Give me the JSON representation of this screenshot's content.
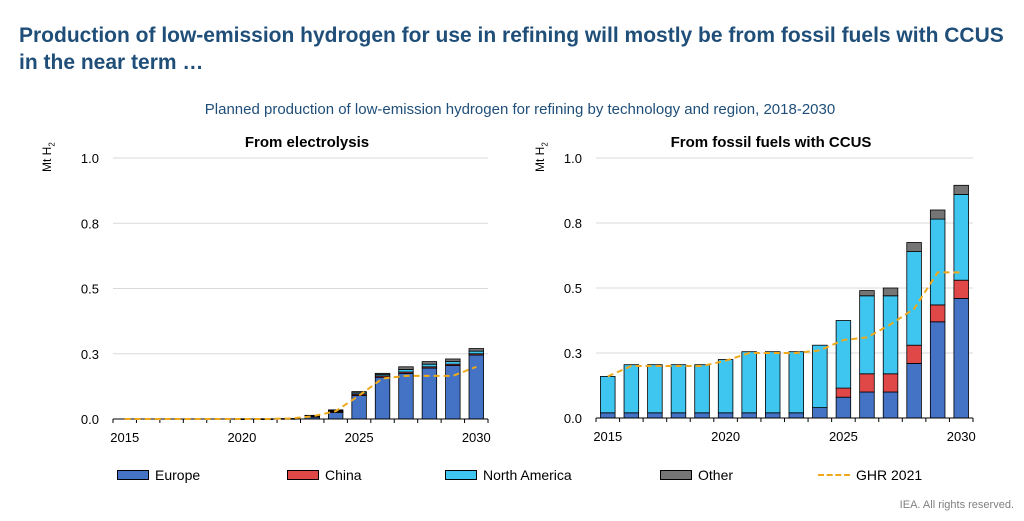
{
  "headline": "Production of low-emission hydrogen for use in refining will mostly be from fossil fuels with CCUS in the near term …",
  "subtitle": "Planned production of low-emission hydrogen for refining by technology and region, 2018-2030",
  "unit_label": "Mt H",
  "unit_subscript": "2",
  "source": "IEA. All rights reserved.",
  "colors": {
    "europe": "#4472c4",
    "china": "#e04848",
    "north_america": "#3fc6f0",
    "other": "#757575",
    "ghr": "#f0a91a"
  },
  "legend": [
    {
      "label": "Europe",
      "color": "#4472c4"
    },
    {
      "label": "China",
      "color": "#e04848"
    },
    {
      "label": "North America",
      "color": "#3fc6f0"
    },
    {
      "label": "Other",
      "color": "#757575"
    },
    {
      "label": "GHR 2021",
      "color": "#f0a91a",
      "style": "dashed-line"
    }
  ],
  "chart_data": [
    {
      "type": "bar",
      "stacked": true,
      "title": "From electrolysis",
      "ylabel": "Mt H2",
      "ylim": [
        0,
        1.0
      ],
      "y_ticks": [
        "0.0",
        "0.3",
        "0.5",
        "0.8",
        "1.0"
      ],
      "y_tick_values": [
        0,
        0.25,
        0.5,
        0.75,
        1.0
      ],
      "x_ticks": [
        "2015",
        "2020",
        "2025",
        "2030"
      ],
      "x_tick_values": [
        2015,
        2020,
        2025,
        2030
      ],
      "xlim": [
        2014.5,
        2030.5
      ],
      "categories": [
        2015,
        2016,
        2017,
        2018,
        2019,
        2020,
        2021,
        2022,
        2023,
        2024,
        2025,
        2026,
        2027,
        2028,
        2029,
        2030
      ],
      "series": [
        {
          "name": "Europe",
          "color": "#4472c4",
          "values": [
            0,
            0,
            0,
            0,
            0,
            0.001,
            0.001,
            0.002,
            0.008,
            0.025,
            0.09,
            0.16,
            0.175,
            0.195,
            0.205,
            0.245
          ]
        },
        {
          "name": "China",
          "color": "#e04848",
          "values": [
            0,
            0,
            0,
            0,
            0,
            0,
            0,
            0,
            0.002,
            0.004,
            0.005,
            0.005,
            0.005,
            0.005,
            0.005,
            0.005
          ]
        },
        {
          "name": "North America",
          "color": "#3fc6f0",
          "values": [
            0,
            0,
            0,
            0,
            0,
            0,
            0,
            0,
            0.002,
            0.003,
            0.005,
            0.005,
            0.01,
            0.01,
            0.01,
            0.01
          ]
        },
        {
          "name": "Other",
          "color": "#757575",
          "values": [
            0,
            0,
            0,
            0,
            0,
            0,
            0,
            0,
            0.002,
            0.003,
            0.005,
            0.005,
            0.01,
            0.01,
            0.01,
            0.01
          ]
        }
      ],
      "line": {
        "name": "GHR 2021",
        "color": "#f0a91a",
        "x": [
          2015,
          2021,
          2022,
          2023,
          2024,
          2025,
          2026,
          2027,
          2028,
          2029,
          2030
        ],
        "values": [
          0,
          0,
          0.002,
          0.01,
          0.03,
          0.09,
          0.155,
          0.165,
          0.165,
          0.165,
          0.2
        ]
      }
    },
    {
      "type": "bar",
      "stacked": true,
      "title": "From fossil fuels with CCUS",
      "ylabel": "Mt H2",
      "ylim": [
        0,
        1.0
      ],
      "y_ticks": [
        "0.0",
        "0.3",
        "0.5",
        "0.8",
        "1.0"
      ],
      "y_tick_values": [
        0,
        0.25,
        0.5,
        0.75,
        1.0
      ],
      "x_ticks": [
        "2015",
        "2020",
        "2025",
        "2030"
      ],
      "x_tick_values": [
        2015,
        2020,
        2025,
        2030
      ],
      "xlim": [
        2014.5,
        2030.5
      ],
      "categories": [
        2015,
        2016,
        2017,
        2018,
        2019,
        2020,
        2021,
        2022,
        2023,
        2024,
        2025,
        2026,
        2027,
        2028,
        2029,
        2030
      ],
      "series": [
        {
          "name": "Europe",
          "color": "#4472c4",
          "values": [
            0.02,
            0.02,
            0.02,
            0.02,
            0.02,
            0.02,
            0.02,
            0.02,
            0.02,
            0.04,
            0.08,
            0.1,
            0.1,
            0.21,
            0.37,
            0.46
          ]
        },
        {
          "name": "China",
          "color": "#e04848",
          "values": [
            0,
            0,
            0,
            0,
            0,
            0,
            0,
            0,
            0,
            0,
            0.035,
            0.07,
            0.07,
            0.07,
            0.065,
            0.07
          ]
        },
        {
          "name": "North America",
          "color": "#3fc6f0",
          "values": [
            0.14,
            0.185,
            0.185,
            0.185,
            0.185,
            0.205,
            0.235,
            0.235,
            0.235,
            0.24,
            0.26,
            0.3,
            0.3,
            0.36,
            0.33,
            0.33
          ]
        },
        {
          "name": "Other",
          "color": "#757575",
          "values": [
            0,
            0,
            0,
            0,
            0,
            0,
            0,
            0,
            0,
            0,
            0,
            0.02,
            0.03,
            0.035,
            0.035,
            0.035
          ]
        }
      ],
      "line": {
        "name": "GHR 2021",
        "color": "#f0a91a",
        "x": [
          2015,
          2016,
          2017,
          2018,
          2019,
          2020,
          2021,
          2022,
          2023,
          2024,
          2025,
          2026,
          2027,
          2028,
          2029,
          2030
        ],
        "values": [
          0.16,
          0.2,
          0.2,
          0.2,
          0.2,
          0.22,
          0.25,
          0.25,
          0.25,
          0.26,
          0.3,
          0.31,
          0.36,
          0.42,
          0.56,
          0.56
        ]
      }
    }
  ]
}
